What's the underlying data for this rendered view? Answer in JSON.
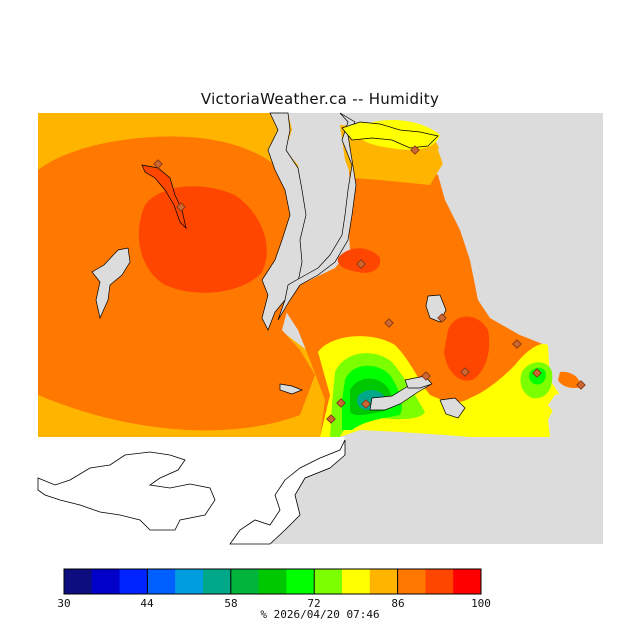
{
  "title": "VictoriaWeather.ca -- Humidity",
  "colors": {
    "land": "#ffffff",
    "no_data": "#dcdcdc",
    "water": "#dcdcdc",
    "outline": "#000000",
    "station_marker": "#cc6633"
  },
  "color_scale": {
    "min": 30,
    "max": 100,
    "tick_labels": [
      "30",
      "44",
      "58",
      "72",
      "86",
      "100"
    ],
    "colors": [
      "#0d0d80",
      "#0000c8",
      "#0024ff",
      "#0060ff",
      "#009ee0",
      "#00a88a",
      "#00b43c",
      "#00c800",
      "#00ff00",
      "#7cff00",
      "#ffff00",
      "#ffb400",
      "#ff7800",
      "#ff4600",
      "#ff0000"
    ]
  },
  "caption": {
    "unit": "%",
    "timestamp": "2026/04/20 07:46"
  },
  "contour_levels": {
    "base": "#ffb400",
    "ring1": "#ff7800",
    "core": "#ff4600",
    "mid_yellow": "#ffff00",
    "mid_green1": "#7cff00",
    "mid_green2": "#00ff00",
    "mid_green3": "#00c800",
    "low_teal": "#00a88a"
  }
}
